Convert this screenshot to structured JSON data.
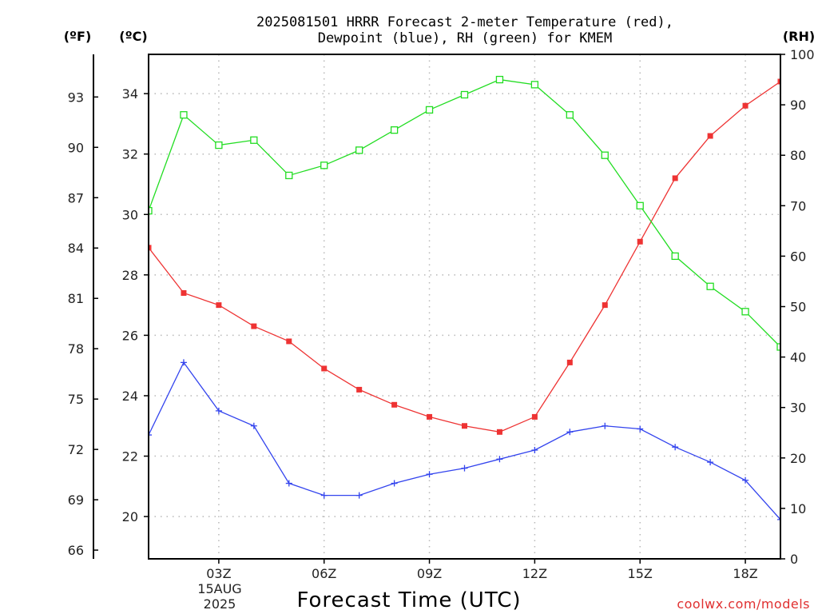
{
  "chart_data": {
    "type": "line",
    "title_line1": "2025081501 HRRR Forecast 2-meter Temperature (red),",
    "title_line2": "Dewpoint (blue), RH (green) for KMEM",
    "unit_f": "(ºF)",
    "unit_c": "(ºC)",
    "unit_rh": "(RH)",
    "xlabel": "Forecast Time (UTC)",
    "credit": "coolwx.com/models",
    "x_hours": [
      1,
      2,
      3,
      4,
      5,
      6,
      7,
      8,
      9,
      10,
      11,
      12,
      13,
      14,
      15,
      16,
      17,
      18,
      19
    ],
    "xlim": [
      1,
      19
    ],
    "x_ticks": [
      {
        "hour": 3,
        "label": "03Z"
      },
      {
        "hour": 6,
        "label": "06Z"
      },
      {
        "hour": 9,
        "label": "09Z"
      },
      {
        "hour": 12,
        "label": "12Z"
      },
      {
        "hour": 15,
        "label": "15Z"
      },
      {
        "hour": 18,
        "label": "18Z"
      }
    ],
    "date_label_line1": "15AUG",
    "date_label_line2": "2025",
    "celsius_ylim": [
      18.6,
      35.3
    ],
    "celsius_ticks": [
      "20",
      "22",
      "24",
      "26",
      "28",
      "30",
      "32",
      "34"
    ],
    "fahrenheit_ticks": [
      "66",
      "69",
      "72",
      "75",
      "78",
      "81",
      "84",
      "87",
      "90",
      "93"
    ],
    "rh_ylim": [
      0,
      100
    ],
    "rh_ticks": [
      "0",
      "10",
      "20",
      "30",
      "40",
      "50",
      "60",
      "70",
      "80",
      "90",
      "100"
    ],
    "grid": true,
    "series": [
      {
        "name": "Temperature",
        "color": "#ee3333",
        "marker": "filled-square",
        "axis": "celsius",
        "values": [
          28.9,
          27.4,
          27.0,
          26.3,
          25.8,
          24.9,
          24.2,
          23.7,
          23.3,
          23.0,
          22.8,
          23.3,
          25.1,
          27.0,
          29.1,
          31.2,
          32.6,
          33.6,
          34.4
        ]
      },
      {
        "name": "Dewpoint",
        "color": "#3344ee",
        "marker": "plus",
        "axis": "celsius",
        "values": [
          22.7,
          25.1,
          23.5,
          23.0,
          21.1,
          20.7,
          20.7,
          21.1,
          21.4,
          21.6,
          21.9,
          22.2,
          22.8,
          23.0,
          22.9,
          22.3,
          21.8,
          21.2,
          19.9
        ]
      },
      {
        "name": "Relative Humidity",
        "color": "#22dd22",
        "marker": "open-square",
        "axis": "rh",
        "values": [
          69,
          88,
          82,
          83,
          76,
          78,
          81,
          85,
          89,
          92,
          95,
          94,
          88,
          80,
          70,
          60,
          54,
          49,
          42
        ]
      }
    ]
  }
}
